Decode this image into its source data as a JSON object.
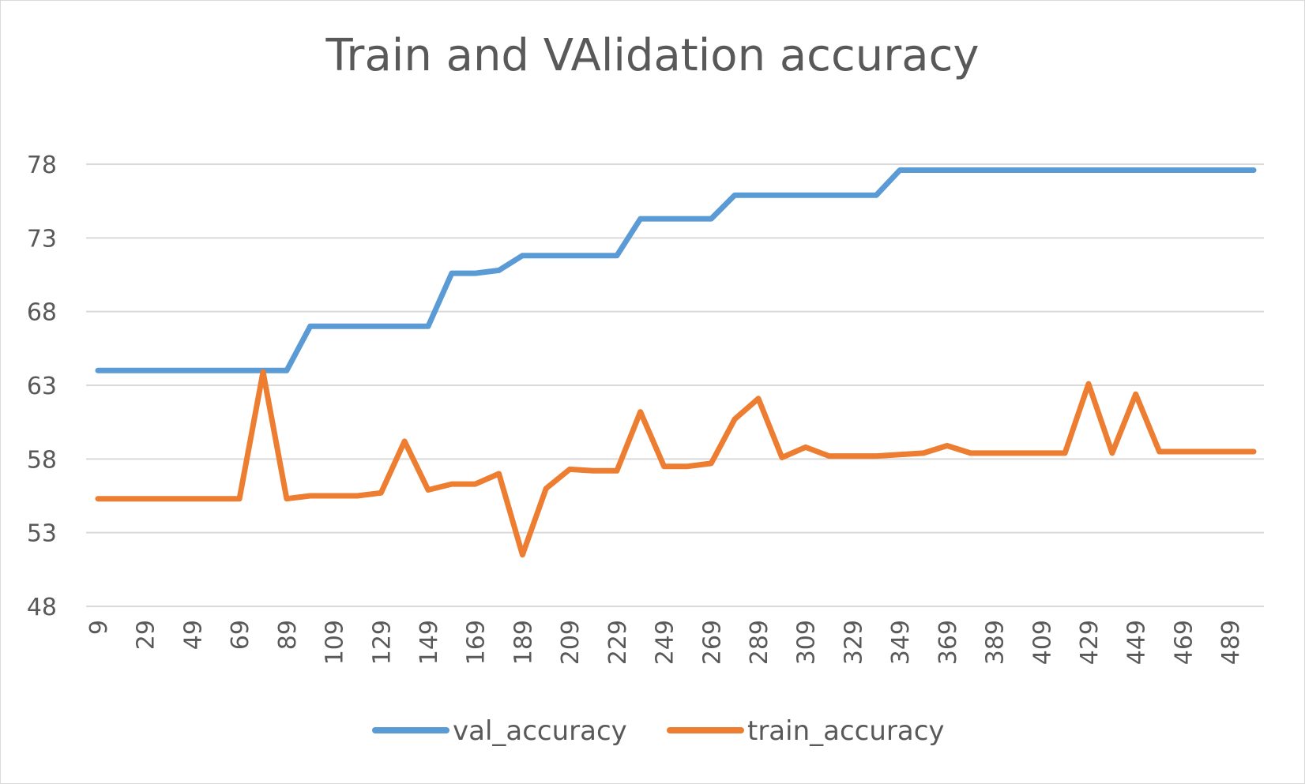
{
  "chart_data": {
    "type": "line",
    "title": "Train and VAlidation accuracy",
    "xlabel": "",
    "ylabel": "",
    "yticks": [
      "48",
      "53",
      "58",
      "63",
      "68",
      "73",
      "78"
    ],
    "ylim": [
      48,
      80
    ],
    "xticks": [
      "9",
      "29",
      "49",
      "69",
      "89",
      "109",
      "129",
      "149",
      "169",
      "189",
      "209",
      "229",
      "249",
      "269",
      "289",
      "309",
      "329",
      "349",
      "369",
      "389",
      "409",
      "429",
      "449",
      "469",
      "489"
    ],
    "x": [
      9,
      19,
      29,
      39,
      49,
      59,
      69,
      79,
      89,
      99,
      109,
      119,
      129,
      139,
      149,
      159,
      169,
      179,
      189,
      199,
      209,
      219,
      229,
      239,
      249,
      259,
      269,
      279,
      289,
      299,
      309,
      319,
      329,
      339,
      349,
      359,
      369,
      379,
      389,
      399,
      409,
      419,
      429,
      439,
      449,
      459,
      469,
      479,
      489,
      499
    ],
    "grid": true,
    "legend_position": "bottom",
    "series": [
      {
        "name": "val_accuracy",
        "color": "#5b9bd5",
        "values": [
          64,
          64,
          64,
          64,
          64,
          64,
          64,
          64,
          64,
          67,
          67,
          67,
          67,
          67,
          67,
          70.6,
          70.6,
          70.8,
          71.8,
          71.8,
          71.8,
          71.8,
          71.8,
          74.3,
          74.3,
          74.3,
          74.3,
          75.9,
          75.9,
          75.9,
          75.9,
          75.9,
          75.9,
          75.9,
          77.6,
          77.6,
          77.6,
          77.6,
          77.6,
          77.6,
          77.6,
          77.6,
          77.6,
          77.6,
          77.6,
          77.6,
          77.6,
          77.6,
          77.6,
          77.6
        ]
      },
      {
        "name": "train_accuracy",
        "color": "#ed7d31",
        "values": [
          55.3,
          55.3,
          55.3,
          55.3,
          55.3,
          55.3,
          55.3,
          63.9,
          55.3,
          55.5,
          55.5,
          55.5,
          55.7,
          59.2,
          55.9,
          56.3,
          56.3,
          57,
          51.5,
          56,
          57.3,
          57.2,
          57.2,
          61.2,
          57.5,
          57.5,
          57.7,
          60.7,
          62.1,
          58.1,
          58.8,
          58.2,
          58.2,
          58.2,
          58.3,
          58.4,
          58.9,
          58.4,
          58.4,
          58.4,
          58.4,
          58.4,
          63.1,
          58.4,
          62.4,
          58.5,
          58.5,
          58.5,
          58.5,
          58.5
        ]
      }
    ]
  }
}
